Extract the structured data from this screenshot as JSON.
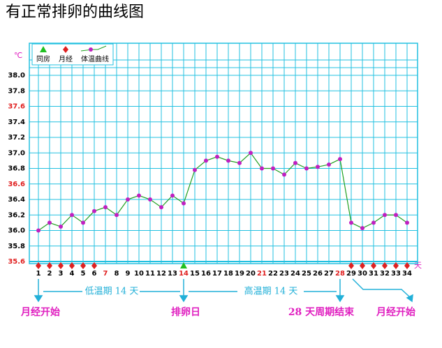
{
  "chart_data": {
    "type": "line",
    "title": "有正常排卵的曲线图",
    "y_unit": "℃",
    "x_unit": "天",
    "x": [
      1,
      2,
      3,
      4,
      5,
      6,
      7,
      8,
      9,
      10,
      11,
      12,
      13,
      14,
      15,
      16,
      17,
      18,
      19,
      20,
      21,
      22,
      23,
      24,
      25,
      26,
      27,
      28,
      29,
      30,
      31,
      32,
      33,
      34
    ],
    "highlight_x": [
      7,
      14,
      21,
      28
    ],
    "highlight_color": "#e02020",
    "xlim": [
      1,
      34
    ],
    "ylim": [
      35.6,
      38.0
    ],
    "yticks": [
      {
        "value": 35.6,
        "label": "35.6",
        "color": "#e02020"
      },
      {
        "value": 35.8,
        "label": "35.8",
        "color": "#000000"
      },
      {
        "value": 36.0,
        "label": "36.0",
        "color": "#000000"
      },
      {
        "value": 36.2,
        "label": "36.2",
        "color": "#000000"
      },
      {
        "value": 36.4,
        "label": "36.4",
        "color": "#000000"
      },
      {
        "value": 36.6,
        "label": "36.6",
        "color": "#e02020"
      },
      {
        "value": 36.8,
        "label": "36.8",
        "color": "#000000"
      },
      {
        "value": 37.0,
        "label": "37.0",
        "color": "#000000"
      },
      {
        "value": 37.2,
        "label": "37.2",
        "color": "#000000"
      },
      {
        "value": 37.4,
        "label": "37.4",
        "color": "#000000"
      },
      {
        "value": 37.6,
        "label": "37.6",
        "color": "#e02020"
      },
      {
        "value": 37.8,
        "label": "37.8",
        "color": "#000000"
      },
      {
        "value": 38.0,
        "label": "38.0",
        "color": "#000000"
      }
    ],
    "grid": true,
    "grid_color": "#22c0e0",
    "series": [
      {
        "name": "体温曲线",
        "color": "#20a020",
        "marker_color": "#c020c0",
        "values": [
          36.0,
          36.1,
          36.05,
          36.2,
          36.1,
          36.25,
          36.3,
          36.2,
          36.4,
          36.45,
          36.4,
          36.3,
          36.45,
          36.35,
          36.78,
          36.9,
          36.95,
          36.9,
          36.87,
          37.0,
          36.8,
          36.8,
          36.72,
          36.87,
          36.8,
          36.82,
          36.85,
          36.92,
          36.1,
          36.03,
          36.1,
          36.2,
          36.2,
          36.1
        ]
      }
    ],
    "markers": [
      {
        "name": "同房",
        "color": "#20c020",
        "shape": "triangle",
        "days": [
          14
        ]
      },
      {
        "name": "月经",
        "color": "#e02020",
        "shape": "diamond",
        "days": [
          1,
          2,
          3,
          4,
          5,
          6,
          29,
          30,
          31,
          32,
          33,
          34
        ]
      }
    ],
    "annotations": {
      "low_phase": "低温期 14 天",
      "high_phase": "高温期 14 天",
      "period_start_1": "月经开始",
      "ovulation": "排卵日",
      "cycle_end": "28 天周期结束",
      "period_start_2": "月经开始"
    }
  }
}
